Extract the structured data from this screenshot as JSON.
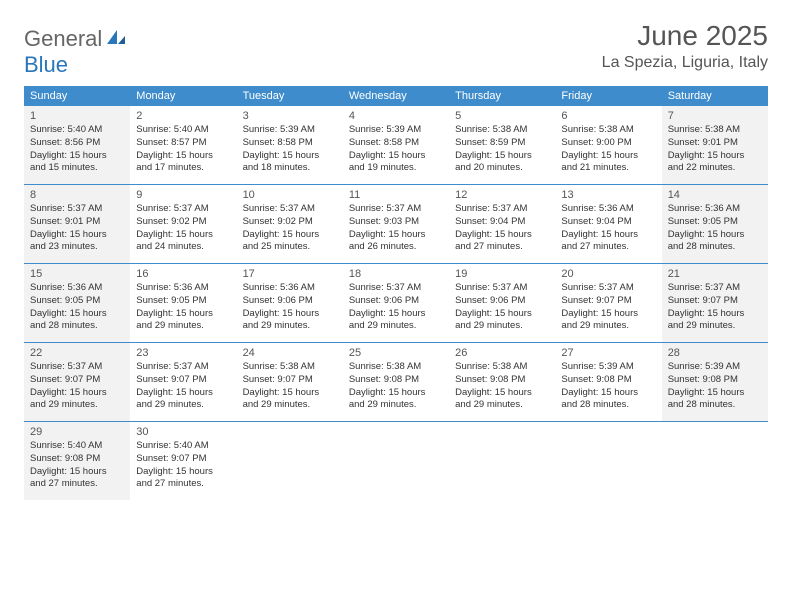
{
  "brand": {
    "part1": "General",
    "part2": "Blue"
  },
  "title": "June 2025",
  "location": "La Spezia, Liguria, Italy",
  "colors": {
    "header_bg": "#3e8ccc",
    "text_gray": "#555555",
    "dim_bg": "#f2f2f2"
  },
  "daysOfWeek": [
    "Sunday",
    "Monday",
    "Tuesday",
    "Wednesday",
    "Thursday",
    "Friday",
    "Saturday"
  ],
  "weeks": [
    [
      {
        "num": "1",
        "sunrise": "5:40 AM",
        "sunset": "8:56 PM",
        "day_h": "15",
        "day_m": "15",
        "dim": true
      },
      {
        "num": "2",
        "sunrise": "5:40 AM",
        "sunset": "8:57 PM",
        "day_h": "15",
        "day_m": "17",
        "dim": false
      },
      {
        "num": "3",
        "sunrise": "5:39 AM",
        "sunset": "8:58 PM",
        "day_h": "15",
        "day_m": "18",
        "dim": false
      },
      {
        "num": "4",
        "sunrise": "5:39 AM",
        "sunset": "8:58 PM",
        "day_h": "15",
        "day_m": "19",
        "dim": false
      },
      {
        "num": "5",
        "sunrise": "5:38 AM",
        "sunset": "8:59 PM",
        "day_h": "15",
        "day_m": "20",
        "dim": false
      },
      {
        "num": "6",
        "sunrise": "5:38 AM",
        "sunset": "9:00 PM",
        "day_h": "15",
        "day_m": "21",
        "dim": false
      },
      {
        "num": "7",
        "sunrise": "5:38 AM",
        "sunset": "9:01 PM",
        "day_h": "15",
        "day_m": "22",
        "dim": true
      }
    ],
    [
      {
        "num": "8",
        "sunrise": "5:37 AM",
        "sunset": "9:01 PM",
        "day_h": "15",
        "day_m": "23",
        "dim": true
      },
      {
        "num": "9",
        "sunrise": "5:37 AM",
        "sunset": "9:02 PM",
        "day_h": "15",
        "day_m": "24",
        "dim": false
      },
      {
        "num": "10",
        "sunrise": "5:37 AM",
        "sunset": "9:02 PM",
        "day_h": "15",
        "day_m": "25",
        "dim": false
      },
      {
        "num": "11",
        "sunrise": "5:37 AM",
        "sunset": "9:03 PM",
        "day_h": "15",
        "day_m": "26",
        "dim": false
      },
      {
        "num": "12",
        "sunrise": "5:37 AM",
        "sunset": "9:04 PM",
        "day_h": "15",
        "day_m": "27",
        "dim": false
      },
      {
        "num": "13",
        "sunrise": "5:36 AM",
        "sunset": "9:04 PM",
        "day_h": "15",
        "day_m": "27",
        "dim": false
      },
      {
        "num": "14",
        "sunrise": "5:36 AM",
        "sunset": "9:05 PM",
        "day_h": "15",
        "day_m": "28",
        "dim": true
      }
    ],
    [
      {
        "num": "15",
        "sunrise": "5:36 AM",
        "sunset": "9:05 PM",
        "day_h": "15",
        "day_m": "28",
        "dim": true
      },
      {
        "num": "16",
        "sunrise": "5:36 AM",
        "sunset": "9:05 PM",
        "day_h": "15",
        "day_m": "29",
        "dim": false
      },
      {
        "num": "17",
        "sunrise": "5:36 AM",
        "sunset": "9:06 PM",
        "day_h": "15",
        "day_m": "29",
        "dim": false
      },
      {
        "num": "18",
        "sunrise": "5:37 AM",
        "sunset": "9:06 PM",
        "day_h": "15",
        "day_m": "29",
        "dim": false
      },
      {
        "num": "19",
        "sunrise": "5:37 AM",
        "sunset": "9:06 PM",
        "day_h": "15",
        "day_m": "29",
        "dim": false
      },
      {
        "num": "20",
        "sunrise": "5:37 AM",
        "sunset": "9:07 PM",
        "day_h": "15",
        "day_m": "29",
        "dim": false
      },
      {
        "num": "21",
        "sunrise": "5:37 AM",
        "sunset": "9:07 PM",
        "day_h": "15",
        "day_m": "29",
        "dim": true
      }
    ],
    [
      {
        "num": "22",
        "sunrise": "5:37 AM",
        "sunset": "9:07 PM",
        "day_h": "15",
        "day_m": "29",
        "dim": true
      },
      {
        "num": "23",
        "sunrise": "5:37 AM",
        "sunset": "9:07 PM",
        "day_h": "15",
        "day_m": "29",
        "dim": false
      },
      {
        "num": "24",
        "sunrise": "5:38 AM",
        "sunset": "9:07 PM",
        "day_h": "15",
        "day_m": "29",
        "dim": false
      },
      {
        "num": "25",
        "sunrise": "5:38 AM",
        "sunset": "9:08 PM",
        "day_h": "15",
        "day_m": "29",
        "dim": false
      },
      {
        "num": "26",
        "sunrise": "5:38 AM",
        "sunset": "9:08 PM",
        "day_h": "15",
        "day_m": "29",
        "dim": false
      },
      {
        "num": "27",
        "sunrise": "5:39 AM",
        "sunset": "9:08 PM",
        "day_h": "15",
        "day_m": "28",
        "dim": false
      },
      {
        "num": "28",
        "sunrise": "5:39 AM",
        "sunset": "9:08 PM",
        "day_h": "15",
        "day_m": "28",
        "dim": true
      }
    ],
    [
      {
        "num": "29",
        "sunrise": "5:40 AM",
        "sunset": "9:08 PM",
        "day_h": "15",
        "day_m": "27",
        "dim": true
      },
      {
        "num": "30",
        "sunrise": "5:40 AM",
        "sunset": "9:07 PM",
        "day_h": "15",
        "day_m": "27",
        "dim": false
      },
      null,
      null,
      null,
      null,
      null
    ]
  ]
}
